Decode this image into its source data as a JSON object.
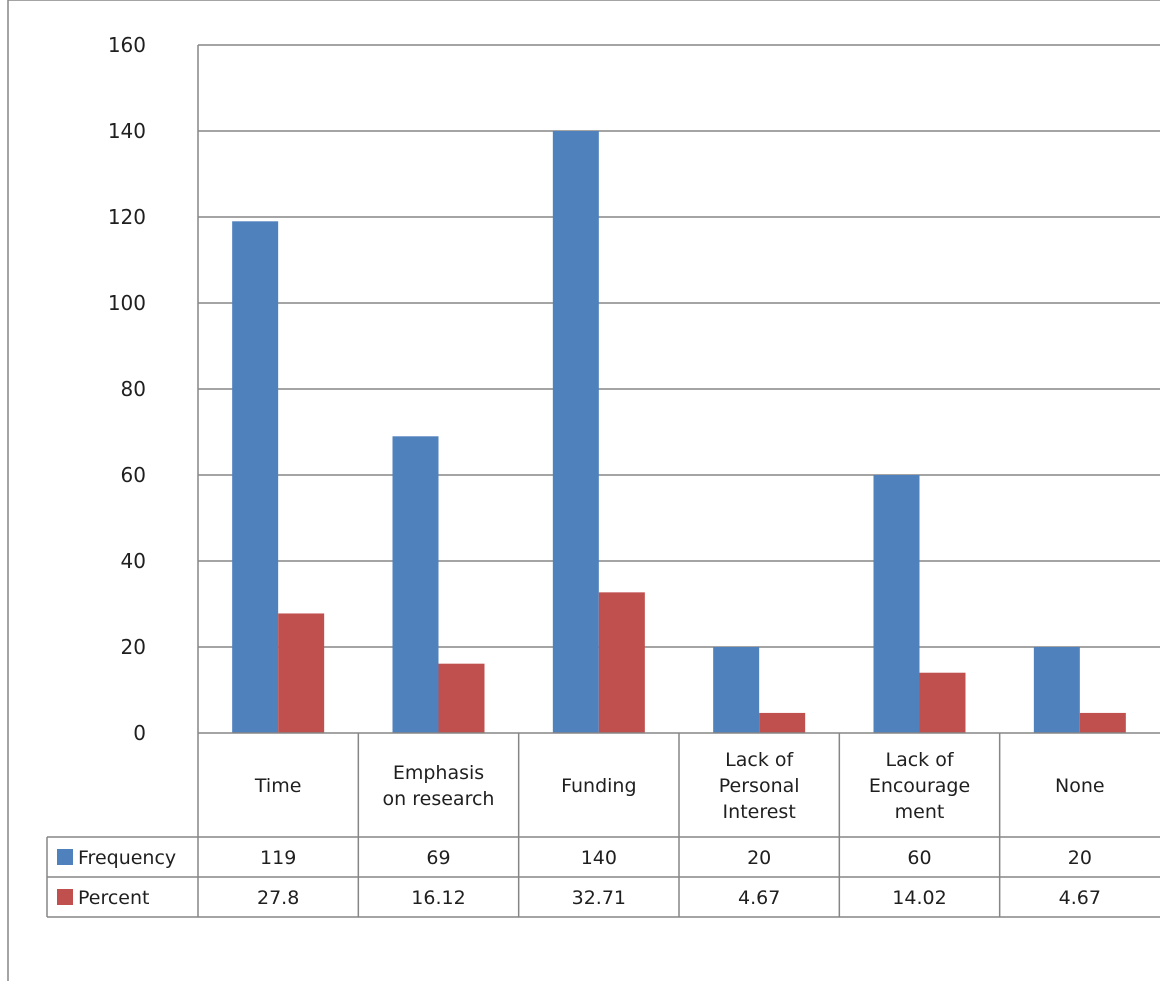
{
  "chart_data": {
    "type": "bar",
    "categories": [
      [
        "Time"
      ],
      [
        "Emphasis",
        "on research"
      ],
      [
        "Funding"
      ],
      [
        "Lack of",
        "Personal",
        "Interest"
      ],
      [
        "Lack of",
        "Encourage",
        "ment"
      ],
      [
        "None"
      ]
    ],
    "series": [
      {
        "name": "Frequency",
        "color": "#4f81bd",
        "values": [
          119,
          69,
          140,
          20,
          60,
          20
        ],
        "labels": [
          "119",
          "69",
          "140",
          "20",
          "60",
          "20"
        ]
      },
      {
        "name": "Percent",
        "color": "#c0504d",
        "values": [
          27.8,
          16.12,
          32.71,
          4.67,
          14.02,
          4.67
        ],
        "labels": [
          "27.8",
          "16.12",
          "32.71",
          "4.67",
          "14.02",
          "4.67"
        ]
      }
    ],
    "y_ticks": [
      "0",
      "20",
      "40",
      "60",
      "80",
      "100",
      "120",
      "140",
      "160"
    ],
    "ylim": [
      0,
      160
    ],
    "grid": true,
    "legend": "data-table"
  }
}
